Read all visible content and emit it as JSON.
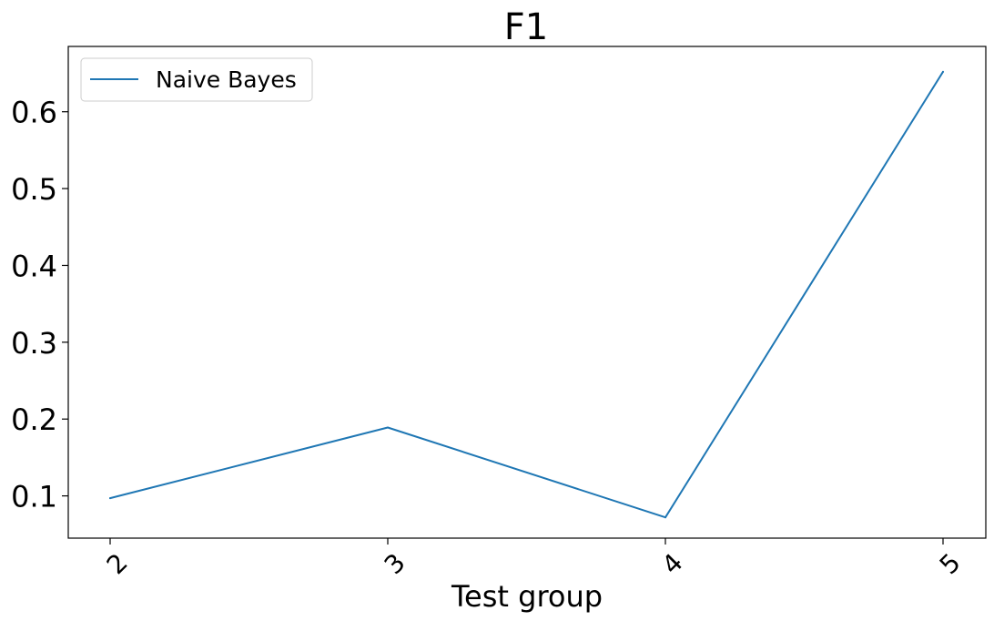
{
  "chart_data": {
    "type": "line",
    "title": "F1",
    "xlabel": "Test group",
    "ylabel": "",
    "x": [
      "2",
      "3",
      "4",
      "5"
    ],
    "series": [
      {
        "name": "Naive Bayes",
        "values": [
          0.097,
          0.189,
          0.072,
          0.652
        ],
        "color": "#1f77b4"
      }
    ],
    "ylim": [
      0.045,
      0.685
    ],
    "yticks": [
      0.1,
      0.2,
      0.3,
      0.4,
      0.5,
      0.6
    ],
    "ytick_labels": [
      "0.1",
      "0.2",
      "0.3",
      "0.4",
      "0.5",
      "0.6"
    ],
    "grid": false,
    "legend_position": "top-left"
  }
}
